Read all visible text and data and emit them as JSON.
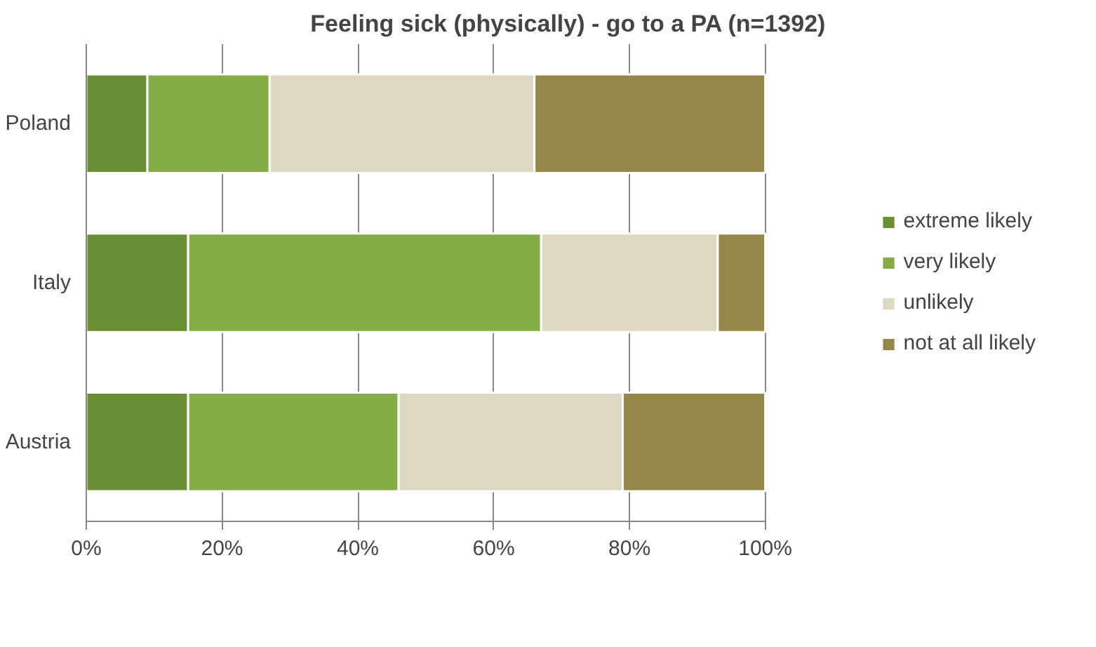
{
  "chart_data": {
    "type": "bar",
    "orientation": "horizontal",
    "stacked": true,
    "title": "Feeling sick (physically) - go to a PA (n=1392)",
    "categories": [
      "Poland",
      "Italy",
      "Austria"
    ],
    "series": [
      {
        "name": "extreme likely",
        "color": "#6a8f35",
        "values": [
          9,
          15,
          15
        ]
      },
      {
        "name": "very likely",
        "color": "#84ad48",
        "values": [
          18,
          52,
          31
        ]
      },
      {
        "name": "unlikely",
        "color": "#ddd8c2",
        "values": [
          39,
          26,
          33
        ]
      },
      {
        "name": "not at all likely",
        "color": "#958649",
        "values": [
          34,
          7,
          21
        ]
      }
    ],
    "xlim": [
      0,
      100
    ],
    "xticks": [
      {
        "value": 0,
        "label": "0%"
      },
      {
        "value": 20,
        "label": "20%"
      },
      {
        "value": 40,
        "label": "40%"
      },
      {
        "value": 60,
        "label": "60%"
      },
      {
        "value": 80,
        "label": "80%"
      },
      {
        "value": 100,
        "label": "100%"
      }
    ],
    "grid": "x",
    "legend": "right"
  }
}
